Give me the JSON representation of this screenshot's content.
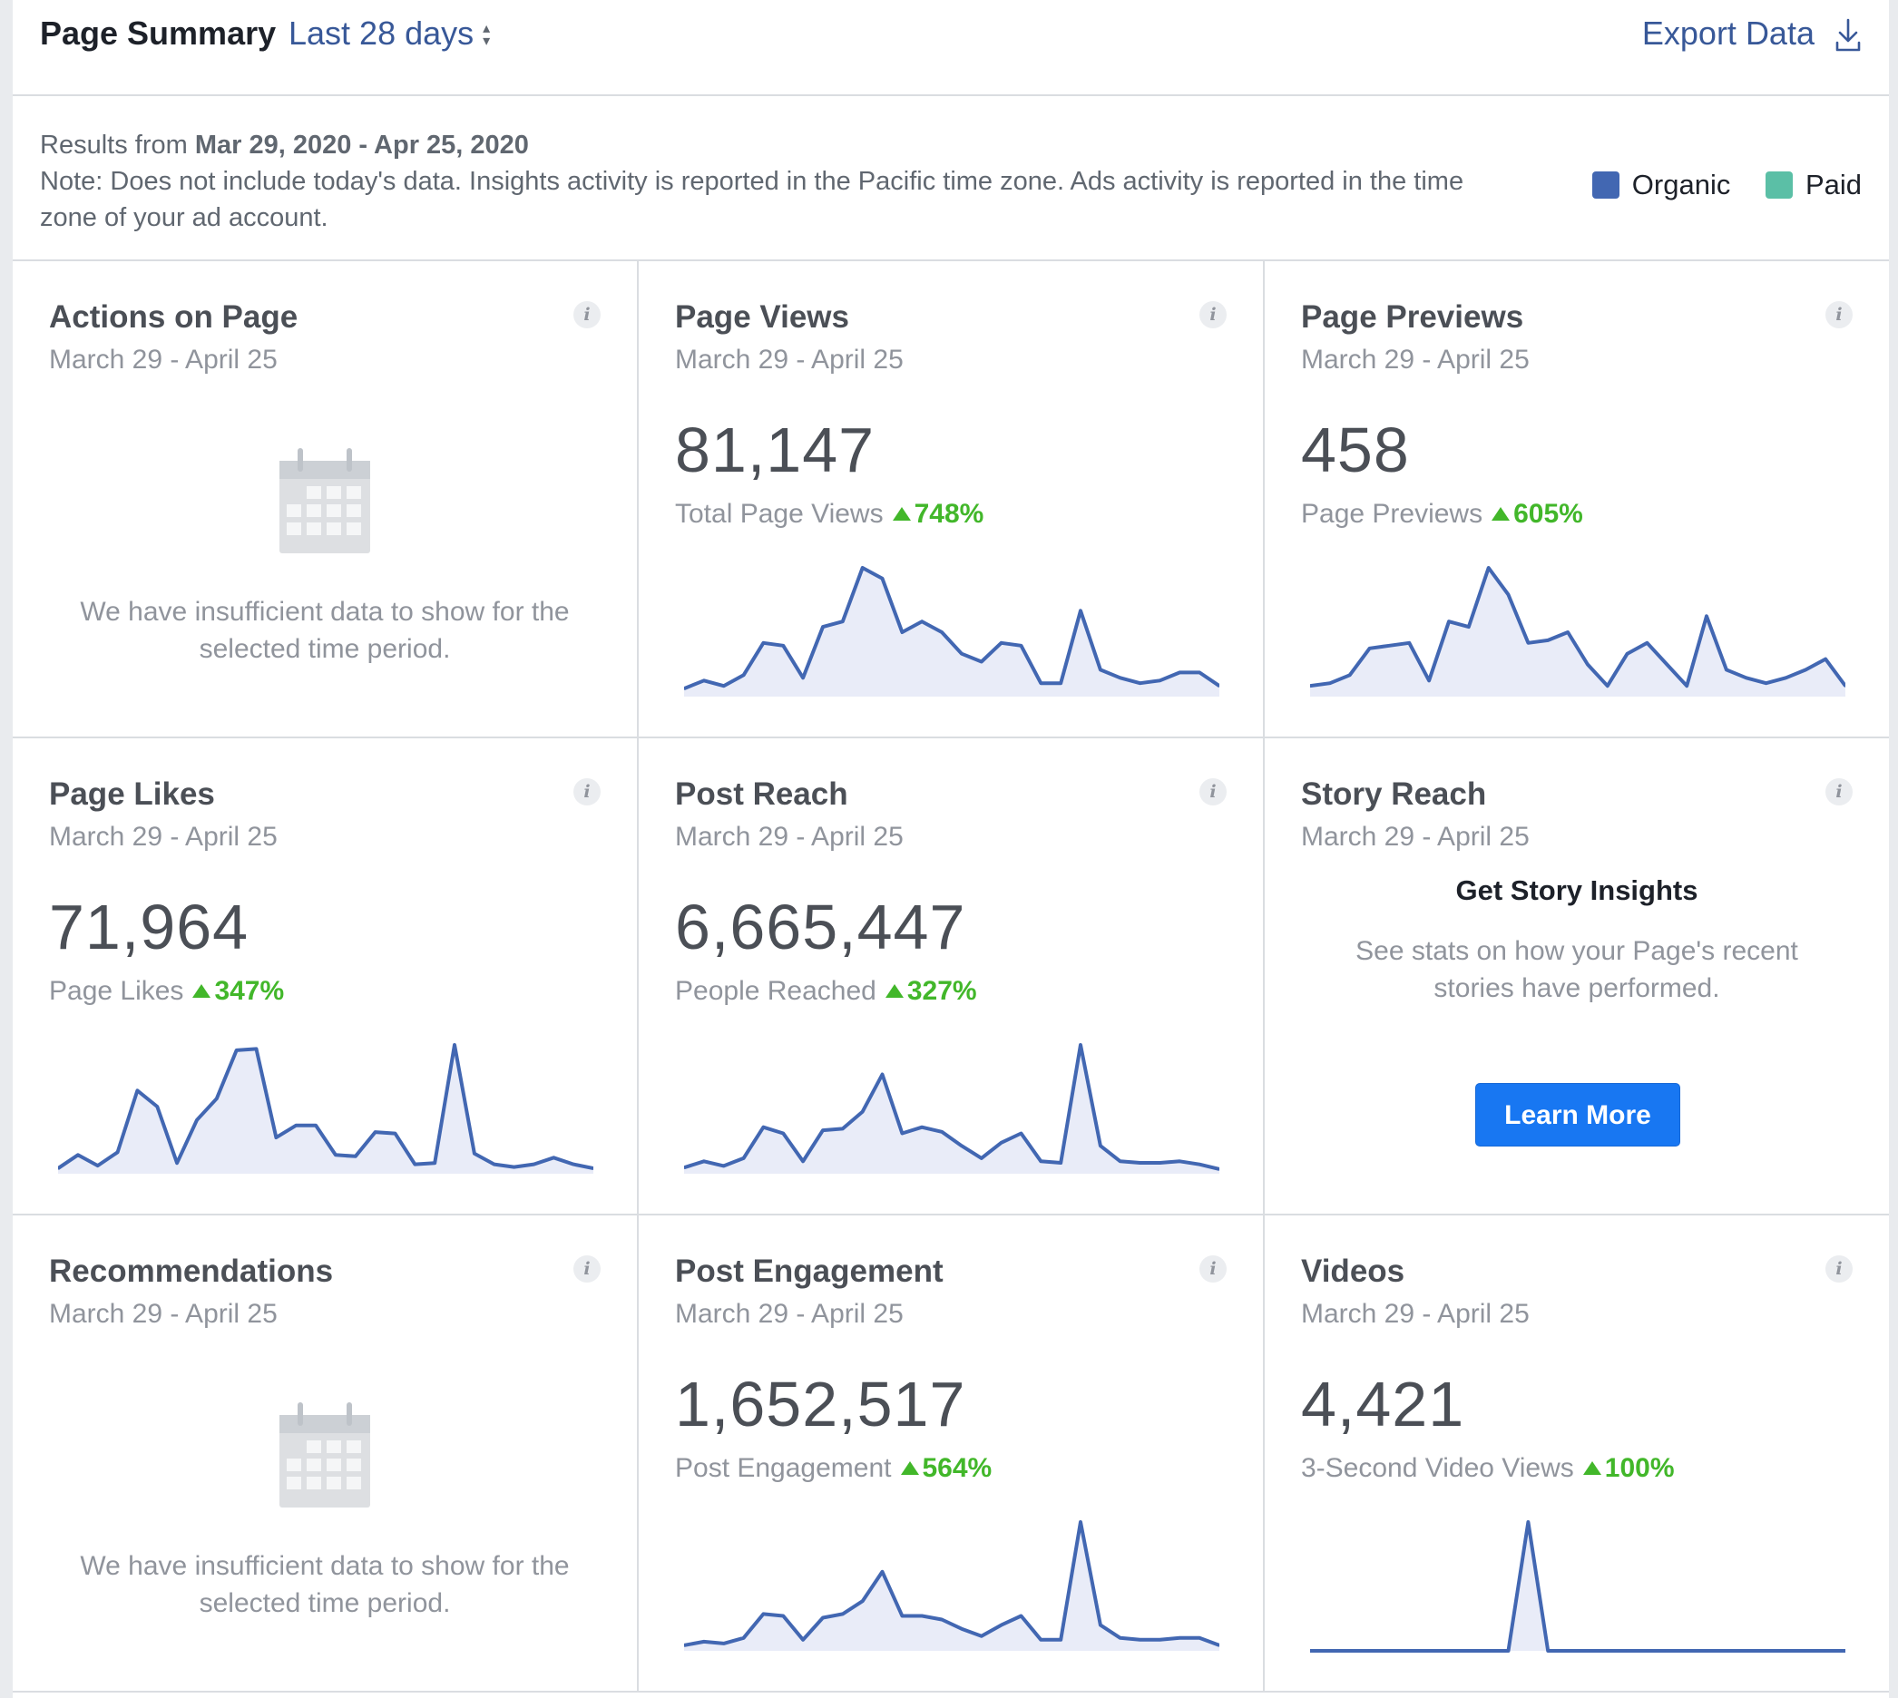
{
  "header": {
    "title": "Page Summary",
    "period_label": "Last 28 days",
    "export_label": "Export Data"
  },
  "info": {
    "results_prefix": "Results from",
    "date_range": "Mar 29, 2020 - Apr 25, 2020",
    "note": "Note: Does not include today's data. Insights activity is reported in the Pacific time zone. Ads activity is reported in the time zone of your ad account.",
    "legend": [
      {
        "label": "Organic",
        "color": "#4267b2"
      },
      {
        "label": "Paid",
        "color": "#5bbfa6"
      }
    ]
  },
  "colors": {
    "accent": "#385898",
    "line": "#4267b2",
    "fill": "#e9ecf8",
    "positive": "#42b72a",
    "button": "#1877f2"
  },
  "cards": [
    {
      "title": "Actions on Page",
      "date": "March 29 - April 25",
      "empty_text": "We have insufficient data to show for the selected time period."
    },
    {
      "title": "Page Views",
      "date": "March 29 - April 25",
      "value": "81,147",
      "metric_label": "Total Page Views",
      "change": "748%",
      "chart_data": {
        "type": "area",
        "values": [
          3,
          6,
          4,
          8,
          20,
          19,
          7,
          26,
          28,
          48,
          44,
          24,
          28,
          24,
          16,
          13,
          20,
          19,
          5,
          5,
          32,
          10,
          7,
          5,
          6,
          9,
          9,
          4
        ]
      }
    },
    {
      "title": "Page Previews",
      "date": "March 29 - April 25",
      "value": "458",
      "metric_label": "Page Previews",
      "change": "605%",
      "chart_data": {
        "type": "area",
        "values": [
          4,
          5,
          8,
          18,
          19,
          20,
          6,
          28,
          26,
          48,
          38,
          20,
          21,
          24,
          12,
          4,
          16,
          20,
          12,
          4,
          30,
          10,
          7,
          5,
          7,
          10,
          14,
          4
        ]
      }
    },
    {
      "title": "Page Likes",
      "date": "March 29 - April 25",
      "value": "71,964",
      "metric_label": "Page Likes",
      "change": "347%",
      "chart_data": {
        "type": "area",
        "values": [
          4,
          14,
          6,
          16,
          62,
          50,
          8,
          40,
          56,
          92,
          93,
          27,
          36,
          36,
          14,
          13,
          31,
          30,
          7,
          8,
          96,
          15,
          7,
          5,
          7,
          12,
          7,
          4
        ]
      }
    },
    {
      "title": "Post Reach",
      "date": "March 29 - April 25",
      "value": "6,665,447",
      "metric_label": "People Reached",
      "change": "327%",
      "chart_data": {
        "type": "area",
        "values": [
          4,
          8,
          5,
          10,
          30,
          26,
          8,
          28,
          29,
          40,
          64,
          26,
          30,
          27,
          18,
          10,
          20,
          26,
          8,
          7,
          83,
          18,
          8,
          7,
          7,
          8,
          6,
          3
        ]
      }
    },
    {
      "title": "Story Reach",
      "date": "March 29 - April 25",
      "promo_title": "Get Story Insights",
      "promo_text": "See stats on how your Page's recent stories have performed.",
      "promo_button": "Learn More"
    },
    {
      "title": "Recommendations",
      "date": "March 29 - April 25",
      "empty_text": "We have insufficient data to show for the selected time period."
    },
    {
      "title": "Post Engagement",
      "date": "March 29 - April 25",
      "value": "1,652,517",
      "metric_label": "Post Engagement",
      "change": "564%",
      "chart_data": {
        "type": "area",
        "values": [
          3,
          5,
          4,
          7,
          20,
          19,
          6,
          18,
          20,
          27,
          43,
          19,
          19,
          17,
          12,
          8,
          14,
          19,
          6,
          6,
          70,
          14,
          7,
          6,
          6,
          7,
          7,
          3
        ]
      }
    },
    {
      "title": "Videos",
      "date": "March 29 - April 25",
      "value": "4,421",
      "metric_label": "3-Second Video Views",
      "change": "100%",
      "chart_data": {
        "type": "area",
        "values": [
          0,
          0,
          0,
          0,
          0,
          0,
          0,
          0,
          0,
          0,
          0,
          100,
          0,
          0,
          0,
          0,
          0,
          0,
          0,
          0,
          0,
          0,
          0,
          0,
          0,
          0,
          0,
          0
        ]
      }
    }
  ]
}
